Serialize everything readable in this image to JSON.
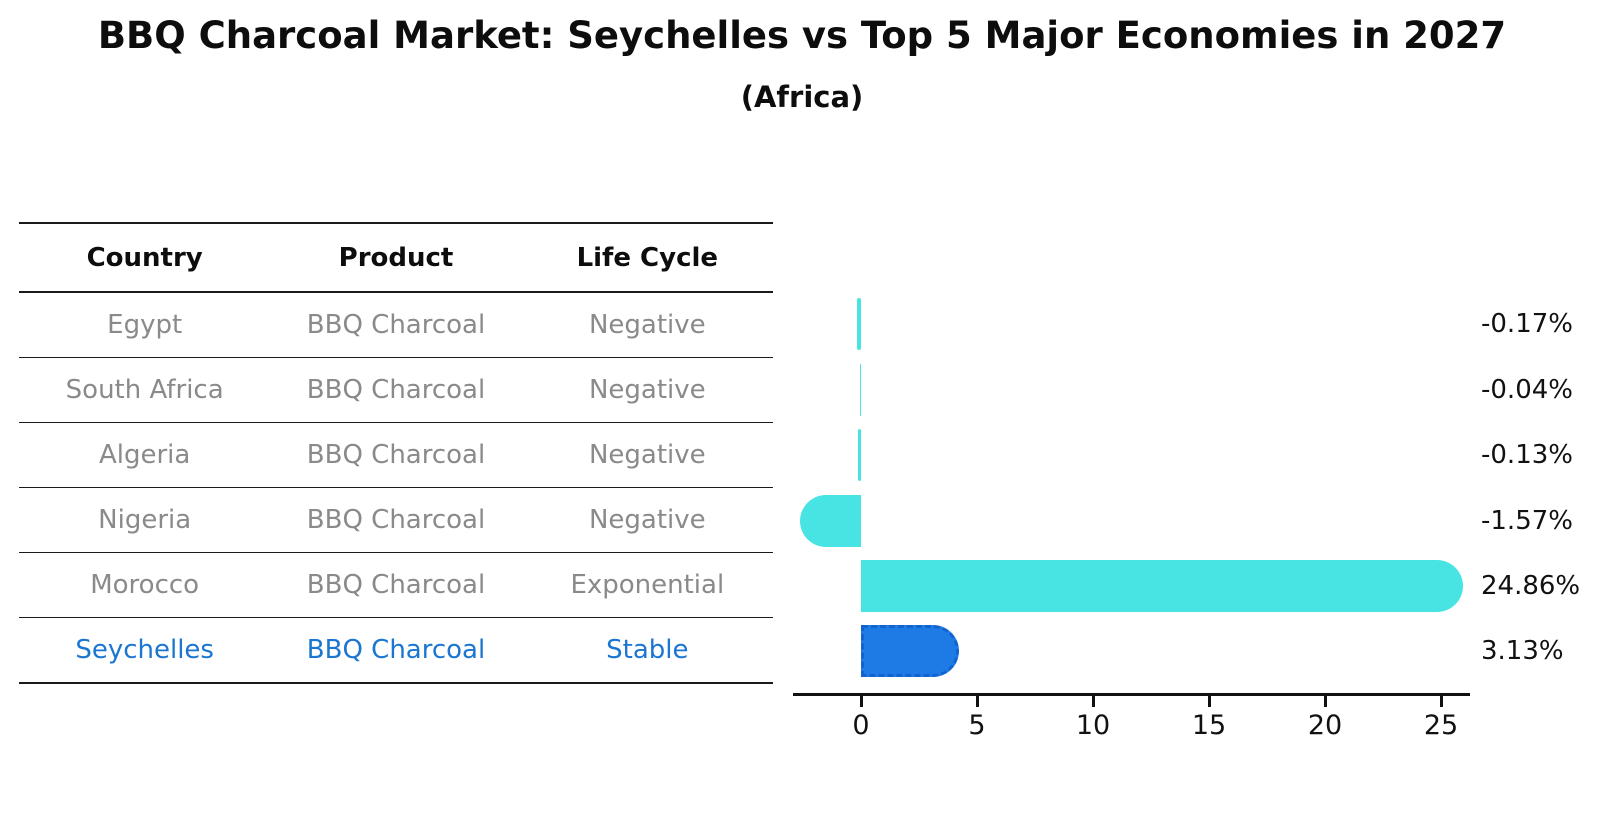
{
  "title": "BBQ Charcoal Market: Seychelles vs Top 5 Major Economies in 2027",
  "subtitle": "(Africa)",
  "table": {
    "headers": [
      "Country",
      "Product",
      "Life Cycle"
    ],
    "rows": [
      {
        "country": "Egypt",
        "product": "BBQ Charcoal",
        "life_cycle": "Negative",
        "highlight": false
      },
      {
        "country": "South Africa",
        "product": "BBQ Charcoal",
        "life_cycle": "Negative",
        "highlight": false
      },
      {
        "country": "Algeria",
        "product": "BBQ Charcoal",
        "life_cycle": "Negative",
        "highlight": false
      },
      {
        "country": "Nigeria",
        "product": "BBQ Charcoal",
        "life_cycle": "Negative",
        "highlight": false
      },
      {
        "country": "Morocco",
        "product": "BBQ Charcoal",
        "life_cycle": "Exponential",
        "highlight": false
      },
      {
        "country": "Seychelles",
        "product": "BBQ Charcoal",
        "life_cycle": "Stable",
        "highlight": true
      }
    ]
  },
  "chart_data": {
    "type": "bar",
    "orientation": "horizontal",
    "categories": [
      "Egypt",
      "South Africa",
      "Algeria",
      "Nigeria",
      "Morocco",
      "Seychelles"
    ],
    "values": [
      -0.17,
      -0.04,
      -0.13,
      -1.57,
      24.86,
      3.13
    ],
    "value_labels": [
      "-0.17%",
      "-0.04%",
      "-0.13%",
      "-1.57%",
      "24.86%",
      "3.13%"
    ],
    "title": "BBQ Charcoal Market: Seychelles vs Top 5 Major Economies in 2027",
    "subtitle": "(Africa)",
    "xlabel": "",
    "ylabel": "",
    "xticks": [
      0,
      5,
      10,
      15,
      20,
      25
    ],
    "xlim": [
      -3.1,
      26.4
    ],
    "grid": false,
    "legend": "none",
    "bar_style": "rounded-cap, highlight bar has dashed edge"
  },
  "colors": {
    "bar_default": "#48E4E4",
    "bar_highlight": "#1E7BE6",
    "highlight_text": "#1B76D1",
    "muted_text": "#8A8A8A",
    "text": "#111111"
  }
}
